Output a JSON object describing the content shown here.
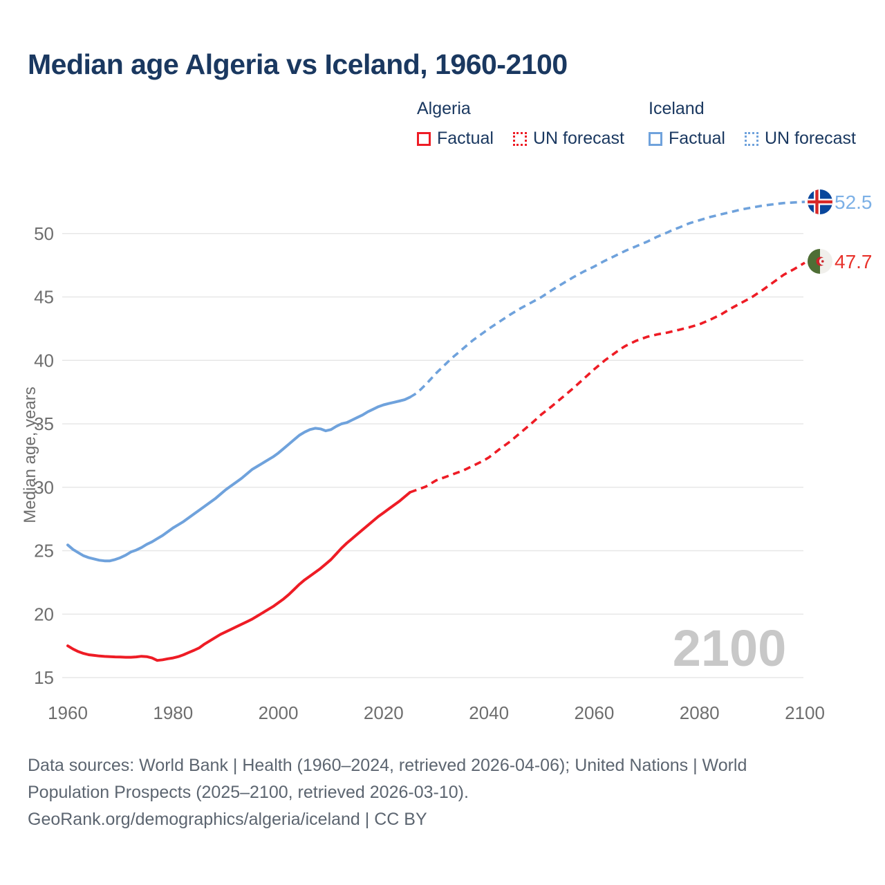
{
  "title": "Median age Algeria vs Iceland, 1960-2100",
  "legend": {
    "groups": [
      {
        "name": "Algeria",
        "color": "#ee1c25",
        "items": [
          {
            "label": "Factual",
            "style": "solid"
          },
          {
            "label": "UN forecast",
            "style": "dotted"
          }
        ]
      },
      {
        "name": "Iceland",
        "color": "#6fa2dc",
        "items": [
          {
            "label": "Factual",
            "style": "solid"
          },
          {
            "label": "UN forecast",
            "style": "dotted"
          }
        ]
      }
    ]
  },
  "chart_data": {
    "type": "line",
    "title": "Median age Algeria vs Iceland, 1960-2100",
    "xlabel": "",
    "ylabel": "Median age, years",
    "xlim": [
      1960,
      2100
    ],
    "ylim": [
      15,
      53
    ],
    "grid": true,
    "legend_position": "top",
    "x_ticks": [
      1960,
      1980,
      2000,
      2020,
      2040,
      2060,
      2080,
      2100
    ],
    "y_ticks": [
      15,
      20,
      25,
      30,
      35,
      40,
      45,
      50
    ],
    "watermark": "2100",
    "colors": {
      "algeria": "#ee1c25",
      "iceland": "#6fa2dc",
      "algeria_label": "#e8312a",
      "iceland_label": "#7cb0e6"
    },
    "series": [
      {
        "name": "Algeria Factual",
        "color": "#ee1c25",
        "dash": "solid",
        "points": [
          [
            1960,
            17.5
          ],
          [
            1961,
            17.25
          ],
          [
            1962,
            17.05
          ],
          [
            1963,
            16.9
          ],
          [
            1964,
            16.8
          ],
          [
            1965,
            16.75
          ],
          [
            1966,
            16.7
          ],
          [
            1967,
            16.67
          ],
          [
            1968,
            16.65
          ],
          [
            1969,
            16.63
          ],
          [
            1970,
            16.62
          ],
          [
            1971,
            16.6
          ],
          [
            1972,
            16.6
          ],
          [
            1973,
            16.63
          ],
          [
            1974,
            16.68
          ],
          [
            1975,
            16.65
          ],
          [
            1976,
            16.55
          ],
          [
            1977,
            16.35
          ],
          [
            1978,
            16.4
          ],
          [
            1979,
            16.48
          ],
          [
            1980,
            16.55
          ],
          [
            1981,
            16.65
          ],
          [
            1982,
            16.8
          ],
          [
            1983,
            16.98
          ],
          [
            1984,
            17.15
          ],
          [
            1985,
            17.35
          ],
          [
            1986,
            17.65
          ],
          [
            1987,
            17.9
          ],
          [
            1988,
            18.15
          ],
          [
            1989,
            18.4
          ],
          [
            1990,
            18.6
          ],
          [
            1991,
            18.8
          ],
          [
            1992,
            19.0
          ],
          [
            1993,
            19.2
          ],
          [
            1994,
            19.4
          ],
          [
            1995,
            19.6
          ],
          [
            1996,
            19.85
          ],
          [
            1997,
            20.1
          ],
          [
            1998,
            20.35
          ],
          [
            1999,
            20.6
          ],
          [
            2000,
            20.9
          ],
          [
            2001,
            21.2
          ],
          [
            2002,
            21.55
          ],
          [
            2003,
            21.95
          ],
          [
            2004,
            22.35
          ],
          [
            2005,
            22.7
          ],
          [
            2006,
            23.0
          ],
          [
            2007,
            23.3
          ],
          [
            2008,
            23.6
          ],
          [
            2009,
            23.95
          ],
          [
            2010,
            24.3
          ],
          [
            2011,
            24.75
          ],
          [
            2012,
            25.2
          ],
          [
            2013,
            25.6
          ],
          [
            2014,
            25.95
          ],
          [
            2015,
            26.3
          ],
          [
            2016,
            26.65
          ],
          [
            2017,
            27.0
          ],
          [
            2018,
            27.35
          ],
          [
            2019,
            27.7
          ],
          [
            2020,
            28.0
          ],
          [
            2021,
            28.3
          ],
          [
            2022,
            28.6
          ],
          [
            2023,
            28.9
          ],
          [
            2024,
            29.25
          ],
          [
            2025,
            29.6
          ]
        ]
      },
      {
        "name": "Algeria UN forecast",
        "color": "#ee1c25",
        "dash": "dashed",
        "points": [
          [
            2025,
            29.6
          ],
          [
            2026,
            29.75
          ],
          [
            2027,
            29.9
          ],
          [
            2028,
            30.05
          ],
          [
            2029,
            30.3
          ],
          [
            2030,
            30.55
          ],
          [
            2031,
            30.7
          ],
          [
            2032,
            30.85
          ],
          [
            2033,
            31.0
          ],
          [
            2034,
            31.15
          ],
          [
            2035,
            31.3
          ],
          [
            2036,
            31.5
          ],
          [
            2037,
            31.7
          ],
          [
            2038,
            31.9
          ],
          [
            2039,
            32.1
          ],
          [
            2040,
            32.35
          ],
          [
            2042,
            33.0
          ],
          [
            2044,
            33.6
          ],
          [
            2045,
            33.95
          ],
          [
            2046,
            34.3
          ],
          [
            2048,
            35.0
          ],
          [
            2050,
            35.75
          ],
          [
            2052,
            36.4
          ],
          [
            2054,
            37.1
          ],
          [
            2055,
            37.45
          ],
          [
            2056,
            37.8
          ],
          [
            2058,
            38.55
          ],
          [
            2060,
            39.3
          ],
          [
            2062,
            40.0
          ],
          [
            2064,
            40.6
          ],
          [
            2065,
            40.9
          ],
          [
            2066,
            41.15
          ],
          [
            2068,
            41.55
          ],
          [
            2070,
            41.85
          ],
          [
            2072,
            42.05
          ],
          [
            2074,
            42.2
          ],
          [
            2075,
            42.3
          ],
          [
            2076,
            42.4
          ],
          [
            2078,
            42.6
          ],
          [
            2080,
            42.85
          ],
          [
            2082,
            43.2
          ],
          [
            2084,
            43.6
          ],
          [
            2085,
            43.85
          ],
          [
            2086,
            44.1
          ],
          [
            2088,
            44.55
          ],
          [
            2090,
            45.0
          ],
          [
            2092,
            45.55
          ],
          [
            2094,
            46.15
          ],
          [
            2095,
            46.45
          ],
          [
            2096,
            46.75
          ],
          [
            2098,
            47.2
          ],
          [
            2100,
            47.7
          ]
        ]
      },
      {
        "name": "Iceland Factual",
        "color": "#6fa2dc",
        "dash": "solid",
        "points": [
          [
            1960,
            25.45
          ],
          [
            1961,
            25.1
          ],
          [
            1962,
            24.85
          ],
          [
            1963,
            24.6
          ],
          [
            1964,
            24.45
          ],
          [
            1965,
            24.35
          ],
          [
            1966,
            24.25
          ],
          [
            1967,
            24.2
          ],
          [
            1968,
            24.2
          ],
          [
            1969,
            24.3
          ],
          [
            1970,
            24.45
          ],
          [
            1971,
            24.65
          ],
          [
            1972,
            24.9
          ],
          [
            1973,
            25.05
          ],
          [
            1974,
            25.25
          ],
          [
            1975,
            25.5
          ],
          [
            1976,
            25.7
          ],
          [
            1977,
            25.95
          ],
          [
            1978,
            26.2
          ],
          [
            1979,
            26.5
          ],
          [
            1980,
            26.8
          ],
          [
            1981,
            27.05
          ],
          [
            1982,
            27.3
          ],
          [
            1983,
            27.6
          ],
          [
            1984,
            27.9
          ],
          [
            1985,
            28.2
          ],
          [
            1986,
            28.5
          ],
          [
            1987,
            28.8
          ],
          [
            1988,
            29.1
          ],
          [
            1989,
            29.45
          ],
          [
            1990,
            29.8
          ],
          [
            1991,
            30.1
          ],
          [
            1992,
            30.4
          ],
          [
            1993,
            30.7
          ],
          [
            1994,
            31.05
          ],
          [
            1995,
            31.4
          ],
          [
            1996,
            31.65
          ],
          [
            1997,
            31.9
          ],
          [
            1998,
            32.15
          ],
          [
            1999,
            32.4
          ],
          [
            2000,
            32.7
          ],
          [
            2001,
            33.05
          ],
          [
            2002,
            33.4
          ],
          [
            2003,
            33.75
          ],
          [
            2004,
            34.1
          ],
          [
            2005,
            34.35
          ],
          [
            2006,
            34.55
          ],
          [
            2007,
            34.65
          ],
          [
            2008,
            34.6
          ],
          [
            2009,
            34.45
          ],
          [
            2010,
            34.55
          ],
          [
            2011,
            34.8
          ],
          [
            2012,
            35.0
          ],
          [
            2013,
            35.1
          ],
          [
            2014,
            35.3
          ],
          [
            2015,
            35.5
          ],
          [
            2016,
            35.7
          ],
          [
            2017,
            35.95
          ],
          [
            2018,
            36.15
          ],
          [
            2019,
            36.35
          ],
          [
            2020,
            36.5
          ],
          [
            2021,
            36.6
          ],
          [
            2022,
            36.7
          ],
          [
            2023,
            36.8
          ],
          [
            2024,
            36.9
          ],
          [
            2025,
            37.1
          ]
        ]
      },
      {
        "name": "Iceland UN forecast",
        "color": "#6fa2dc",
        "dash": "dashed",
        "points": [
          [
            2025,
            37.1
          ],
          [
            2026,
            37.35
          ],
          [
            2027,
            37.7
          ],
          [
            2028,
            38.1
          ],
          [
            2029,
            38.55
          ],
          [
            2030,
            39.0
          ],
          [
            2031,
            39.4
          ],
          [
            2032,
            39.8
          ],
          [
            2033,
            40.2
          ],
          [
            2034,
            40.55
          ],
          [
            2035,
            40.9
          ],
          [
            2036,
            41.25
          ],
          [
            2037,
            41.6
          ],
          [
            2038,
            41.9
          ],
          [
            2039,
            42.2
          ],
          [
            2040,
            42.5
          ],
          [
            2042,
            43.05
          ],
          [
            2044,
            43.6
          ],
          [
            2045,
            43.85
          ],
          [
            2046,
            44.1
          ],
          [
            2048,
            44.55
          ],
          [
            2050,
            45.0
          ],
          [
            2052,
            45.55
          ],
          [
            2054,
            46.05
          ],
          [
            2055,
            46.3
          ],
          [
            2056,
            46.55
          ],
          [
            2058,
            47.0
          ],
          [
            2060,
            47.4
          ],
          [
            2062,
            47.85
          ],
          [
            2064,
            48.25
          ],
          [
            2065,
            48.45
          ],
          [
            2066,
            48.65
          ],
          [
            2068,
            49.0
          ],
          [
            2070,
            49.35
          ],
          [
            2072,
            49.75
          ],
          [
            2074,
            50.1
          ],
          [
            2075,
            50.3
          ],
          [
            2076,
            50.45
          ],
          [
            2078,
            50.8
          ],
          [
            2080,
            51.05
          ],
          [
            2082,
            51.3
          ],
          [
            2084,
            51.5
          ],
          [
            2085,
            51.6
          ],
          [
            2086,
            51.7
          ],
          [
            2088,
            51.9
          ],
          [
            2090,
            52.05
          ],
          [
            2092,
            52.2
          ],
          [
            2094,
            52.3
          ],
          [
            2095,
            52.35
          ],
          [
            2096,
            52.4
          ],
          [
            2098,
            52.45
          ],
          [
            2100,
            52.5
          ]
        ]
      }
    ],
    "end_labels": [
      {
        "series": "Iceland",
        "value": "52.5",
        "flag": "iceland-flag"
      },
      {
        "series": "Algeria",
        "value": "47.7",
        "flag": "algeria-flag"
      }
    ]
  },
  "footer": {
    "line1": "Data sources: World Bank | Health (1960–2024, retrieved 2026-04-06); United Nations | World",
    "line2": "Population Prospects (2025–2100, retrieved 2026-03-10).",
    "line3": "GeoRank.org/demographics/algeria/iceland | CC BY"
  }
}
